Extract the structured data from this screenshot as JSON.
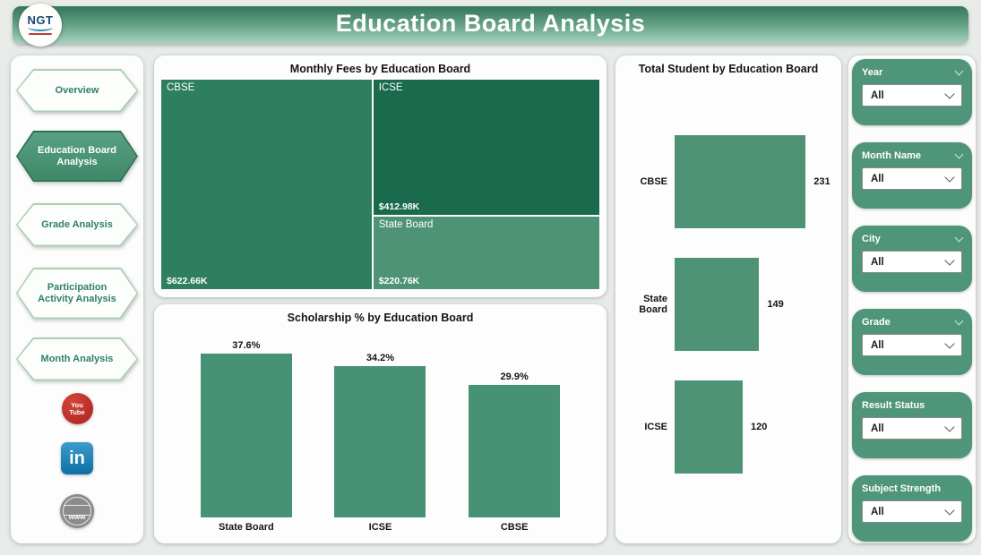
{
  "header": {
    "title": "Education Board Analysis",
    "logo_text": "NGT"
  },
  "sidebar": {
    "items": [
      {
        "label": "Overview",
        "active": false
      },
      {
        "label": "Education Board Analysis",
        "active": true
      },
      {
        "label": "Grade Analysis",
        "active": false
      },
      {
        "label": "Participation Activity Analysis",
        "active": false
      },
      {
        "label": "Month Analysis",
        "active": false
      }
    ],
    "social": [
      {
        "name": "youtube",
        "line1": "You",
        "line2": "Tube"
      },
      {
        "name": "linkedin",
        "label": "in"
      },
      {
        "name": "website",
        "label": "www"
      }
    ]
  },
  "filters": [
    {
      "label": "Year",
      "value": "All"
    },
    {
      "label": "Month Name",
      "value": "All"
    },
    {
      "label": "City",
      "value": "All"
    },
    {
      "label": "Grade",
      "value": "All"
    },
    {
      "label": "Result Status",
      "value": "All"
    },
    {
      "label": "Subject Strength",
      "value": "All"
    }
  ],
  "colors": {
    "accent_green": "#4f9579",
    "treemap_cbse": "#2e7e60",
    "treemap_icse": "#1a6b4e",
    "treemap_state_board": "#4f9377",
    "bar_fill": "#479175",
    "header_gradient_top": "#34775d",
    "header_gradient_bottom": "#a9d3bf"
  },
  "chart_data": [
    {
      "id": "monthly_fees",
      "type": "treemap",
      "title": "Monthly Fees by Education Board",
      "categories": [
        "CBSE",
        "ICSE",
        "State Board"
      ],
      "values": [
        622.66,
        412.98,
        220.76
      ],
      "labels": [
        "$622.66K",
        "$412.98K",
        "$220.76K"
      ],
      "unit": "USD thousands",
      "colors": [
        "#2e7e60",
        "#1a6b4e",
        "#4f9377"
      ]
    },
    {
      "id": "scholarship",
      "type": "bar",
      "title": "Scholarship % by Education Board",
      "categories": [
        "State Board",
        "ICSE",
        "CBSE"
      ],
      "values": [
        37.6,
        34.2,
        29.9
      ],
      "labels": [
        "37.6%",
        "34.2%",
        "29.9%"
      ],
      "ymax": 40,
      "grid": false,
      "data_labels": "above bars"
    },
    {
      "id": "students",
      "type": "bar_horizontal",
      "title": "Total Student by Education Board",
      "categories": [
        "CBSE",
        "State Board",
        "ICSE"
      ],
      "values": [
        231,
        149,
        120
      ],
      "labels": [
        "231",
        "149",
        "120"
      ],
      "xmax": 240,
      "grid": false,
      "data_labels": "right of bars"
    }
  ]
}
